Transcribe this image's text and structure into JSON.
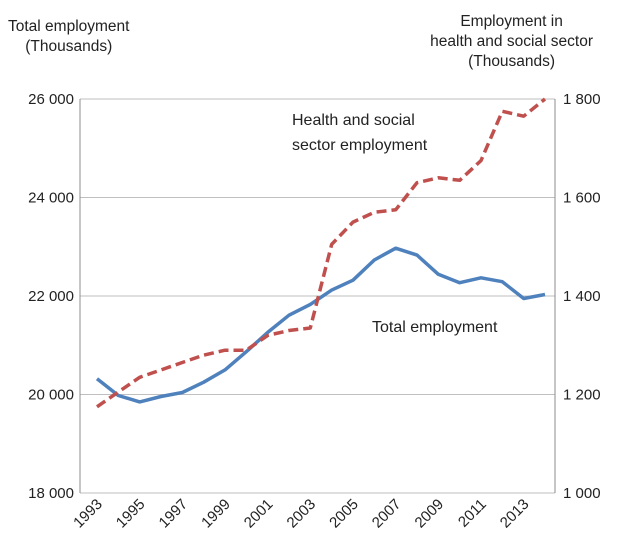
{
  "chart_data": {
    "type": "line",
    "left_axis_title": [
      "Total employment",
      "(Thousands)"
    ],
    "right_axis_title": [
      "Employment in",
      "health and social sector",
      "(Thousands)"
    ],
    "x": [
      1993,
      1994,
      1995,
      1996,
      1997,
      1998,
      1999,
      2000,
      2001,
      2002,
      2003,
      2004,
      2005,
      2006,
      2007,
      2008,
      2009,
      2010,
      2011,
      2012,
      2013,
      2014
    ],
    "x_tick_labels": [
      "1993",
      "1995",
      "1997",
      "1999",
      "2001",
      "2003",
      "2005",
      "2007",
      "2009",
      "2011",
      "2013"
    ],
    "y_left": {
      "range": [
        18000,
        26000
      ],
      "ticks": [
        18000,
        20000,
        22000,
        24000,
        26000
      ],
      "tick_labels": [
        "18 000",
        "20 000",
        "22 000",
        "24 000",
        "26 000"
      ]
    },
    "y_right": {
      "range": [
        1000,
        1800
      ],
      "ticks": [
        1000,
        1200,
        1400,
        1600,
        1800
      ],
      "tick_labels": [
        "1 000",
        "1 200",
        "1 400",
        "1 600",
        "1 800"
      ]
    },
    "grid": "horizontal",
    "series": [
      {
        "name": "Total employment",
        "axis": "left",
        "color": "#4f81bd",
        "style": "solid",
        "label_lines": [
          "Total employment"
        ],
        "values": [
          20320,
          19980,
          19850,
          19960,
          20040,
          20250,
          20500,
          20870,
          21260,
          21610,
          21830,
          22120,
          22320,
          22730,
          22970,
          22830,
          22440,
          22270,
          22370,
          22290,
          21950,
          22030
        ]
      },
      {
        "name": "Health and social sector employment",
        "axis": "right",
        "color": "#c0504d",
        "style": "dashed",
        "label_lines": [
          "Health and social",
          "sector employment"
        ],
        "values": [
          1175,
          1205,
          1235,
          1250,
          1265,
          1280,
          1290,
          1290,
          1320,
          1330,
          1335,
          1505,
          1550,
          1570,
          1575,
          1630,
          1640,
          1635,
          1675,
          1775,
          1765,
          1800
        ]
      }
    ]
  }
}
